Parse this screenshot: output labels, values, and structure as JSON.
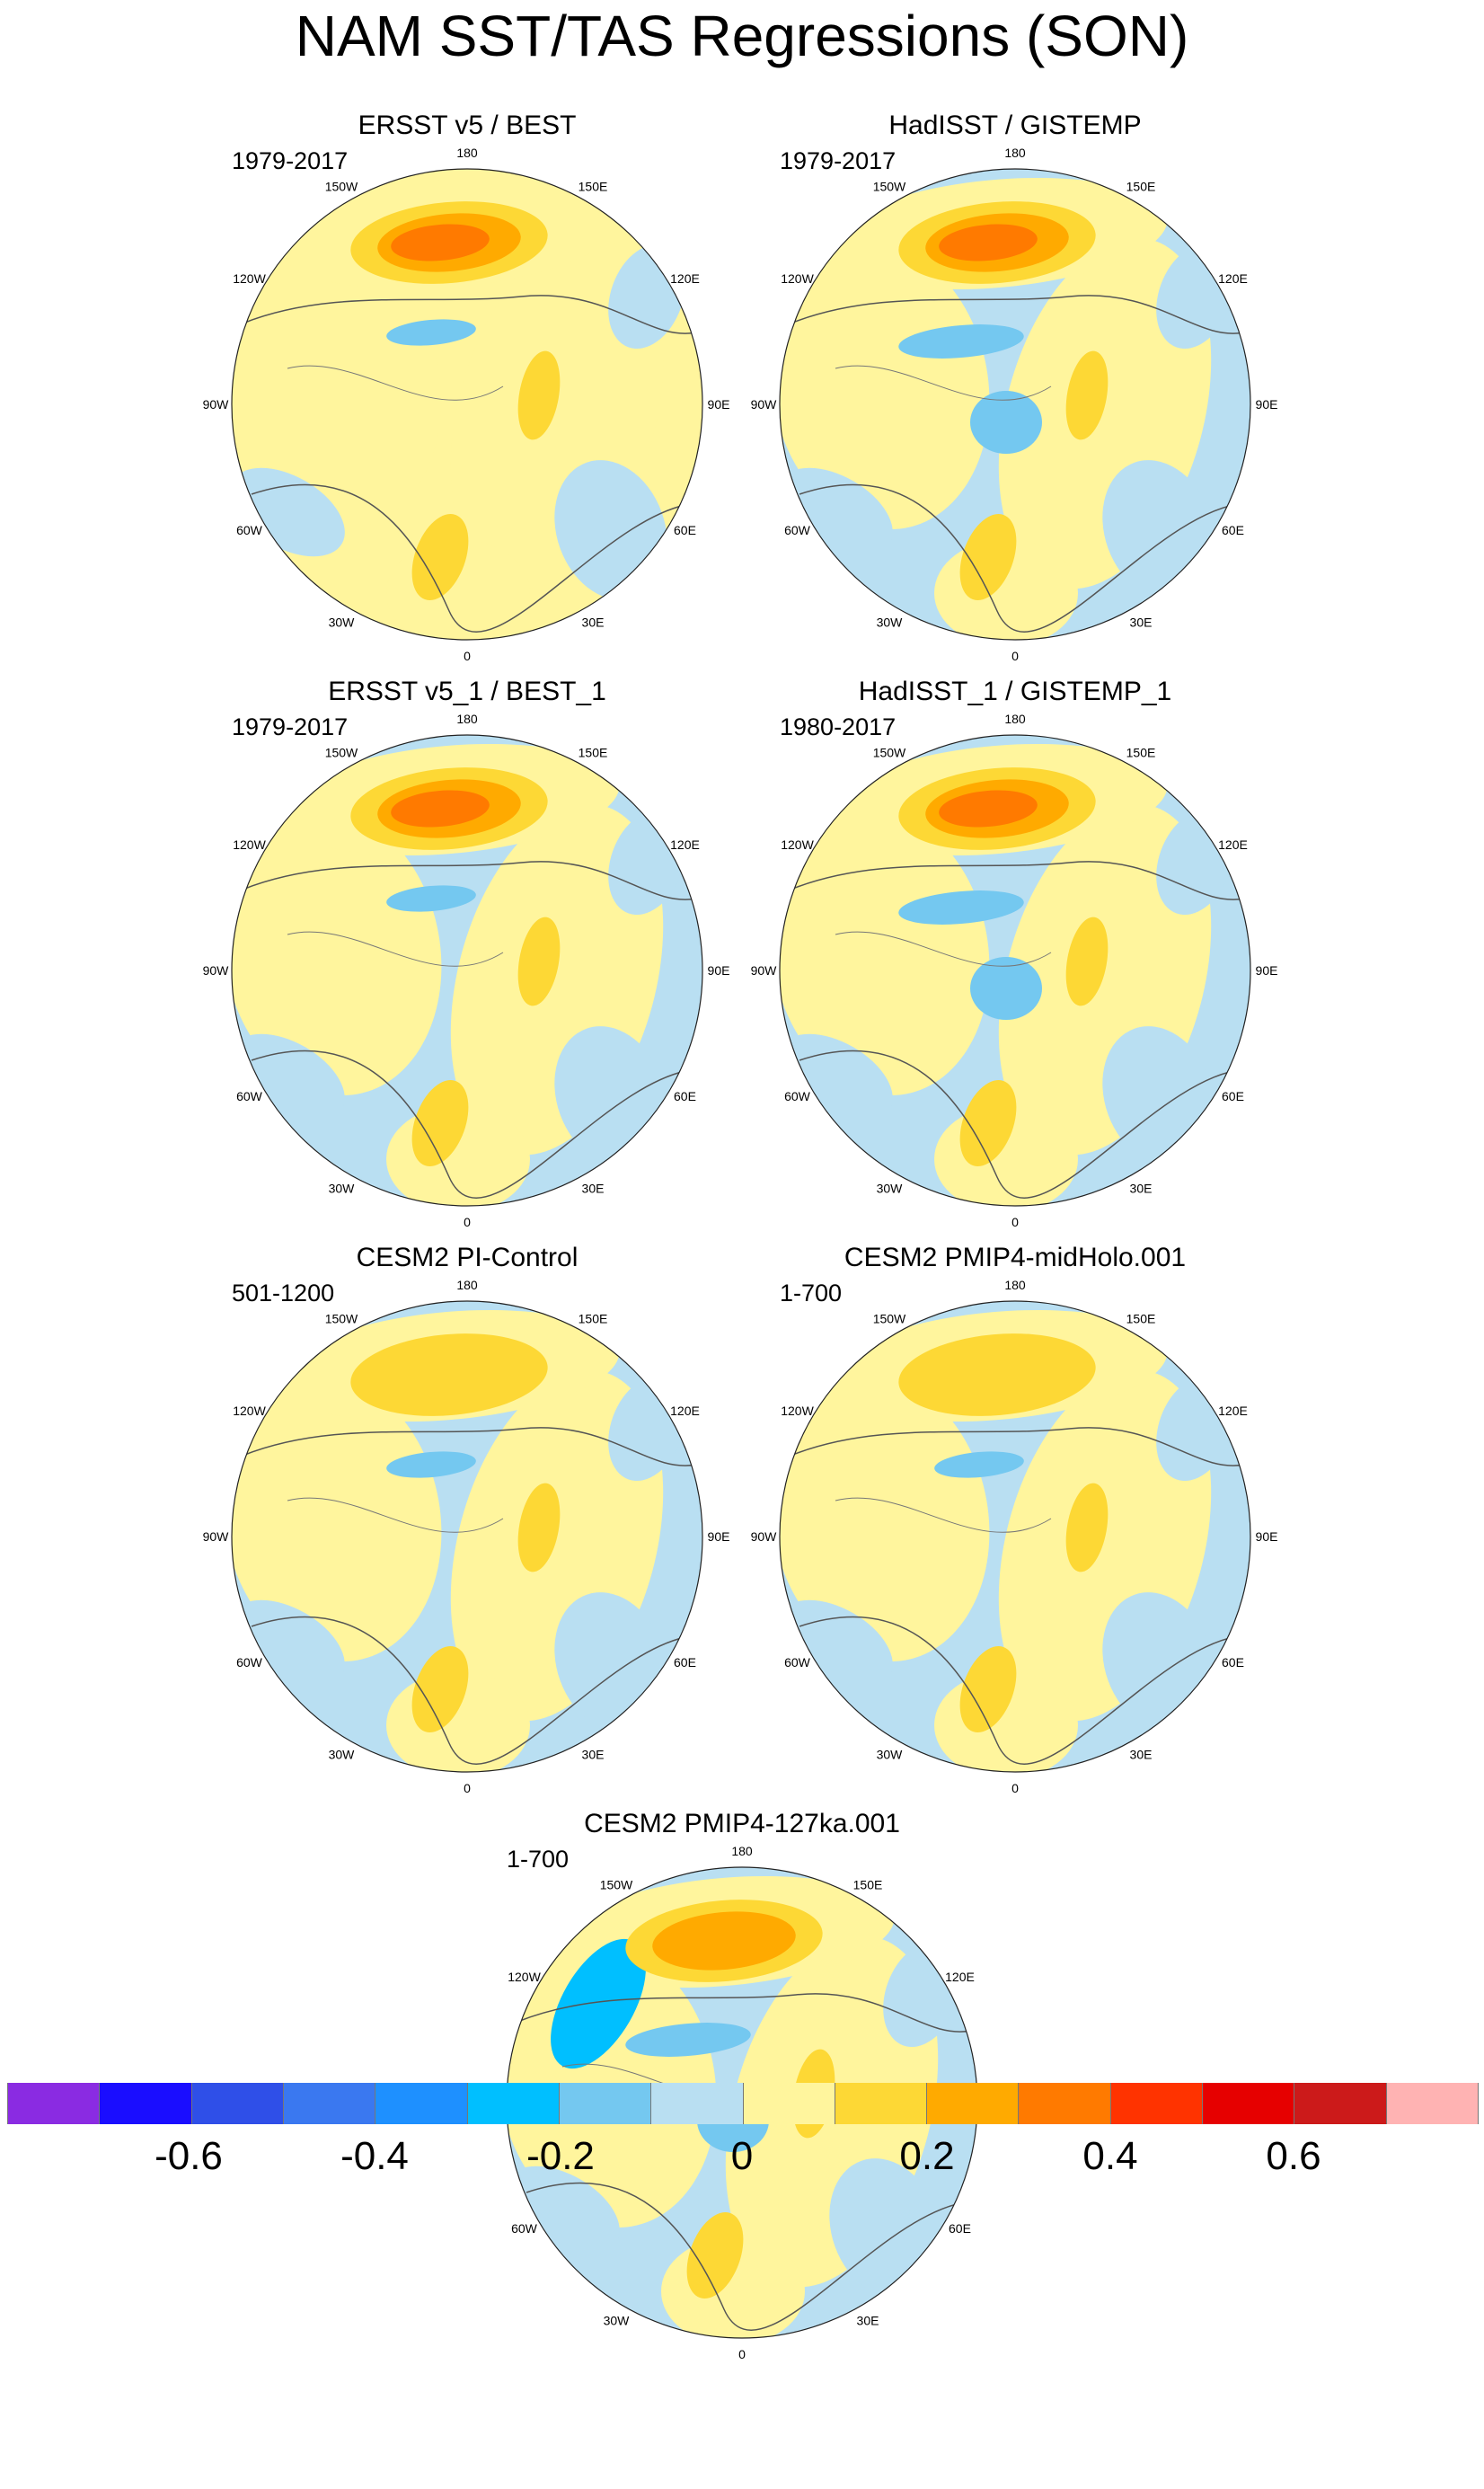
{
  "title": "NAM SST/TAS Regressions (SON)",
  "longitude_labels": [
    "180",
    "150E",
    "120E",
    "90E",
    "60E",
    "30E",
    "0",
    "30W",
    "60W",
    "90W",
    "120W",
    "150W"
  ],
  "panels": [
    {
      "title": "ERSST v5 / BEST",
      "period": "1979-2017"
    },
    {
      "title": "HadISST / GISTEMP",
      "period": "1979-2017"
    },
    {
      "title": "ERSST v5_1 / BEST_1",
      "period": "1979-2017"
    },
    {
      "title": "HadISST_1 / GISTEMP_1",
      "period": "1980-2017"
    },
    {
      "title": "CESM2 PI-Control",
      "period": "501-1200"
    },
    {
      "title": "CESM2 PMIP4-midHolo.001",
      "period": "1-700"
    },
    {
      "title": "CESM2 PMIP4-127ka.001",
      "period": "1-700"
    }
  ],
  "colorbar": {
    "colors": [
      "#8a2be2",
      "#1a0dff",
      "#2f4fe8",
      "#3a78f0",
      "#1e90ff",
      "#00bfff",
      "#74c8f0",
      "#b9dff2",
      "#fff59d",
      "#fdd835",
      "#ffaa00",
      "#ff7a00",
      "#ff3300",
      "#e60000",
      "#cc1a1a",
      "#ffb3b3"
    ],
    "tick_labels": [
      "-0.6",
      "-0.4",
      "-0.2",
      "0",
      "0.2",
      "0.4",
      "0.6"
    ],
    "tick_values": [
      -0.6,
      -0.4,
      -0.2,
      0,
      0.2,
      0.4,
      0.6
    ]
  }
}
